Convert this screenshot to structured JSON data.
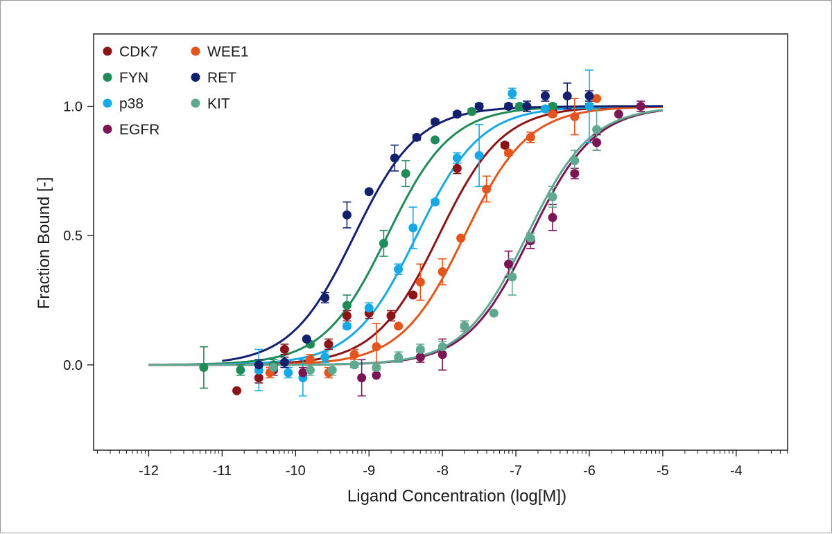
{
  "chart_data": {
    "type": "scatter",
    "xlabel": "Ligand Concentration (log[M])",
    "ylabel": "Fraction Bound [-]",
    "xlim": [
      -12.75,
      -3.3
    ],
    "ylim": [
      -0.33,
      1.28
    ],
    "xticks": [
      -12,
      -11,
      -10,
      -9,
      -8,
      -7,
      -6,
      -5,
      -4
    ],
    "xtick_labels": [
      "-12",
      "-11",
      "-10",
      "-9",
      "-8",
      "-7",
      "-6",
      "-5",
      "-4"
    ],
    "yticks": [
      0.0,
      0.5,
      1.0
    ],
    "ytick_labels": [
      "0.0",
      "0.5",
      "1.0"
    ],
    "grid": false,
    "legend_position": "top-left",
    "fit": "sigmoidal dose-response",
    "series": [
      {
        "name": "CDK7",
        "color": "#8b1418",
        "fit_ec50": -8.05,
        "fit_hill": 1.0,
        "fit_range": [
          -12,
          -5
        ],
        "points": [
          {
            "x": -10.8,
            "y": -0.1,
            "err": 0
          },
          {
            "x": -10.5,
            "y": -0.05,
            "err": 0.02
          },
          {
            "x": -10.15,
            "y": 0.06,
            "err": 0.02
          },
          {
            "x": -9.55,
            "y": 0.08,
            "err": 0.02
          },
          {
            "x": -9.3,
            "y": 0.19,
            "err": 0.02
          },
          {
            "x": -9.0,
            "y": 0.2,
            "err": 0.02
          },
          {
            "x": -8.7,
            "y": 0.19,
            "err": 0.02
          },
          {
            "x": -8.4,
            "y": 0.27,
            "err": 0
          },
          {
            "x": -7.8,
            "y": 0.76,
            "err": 0.02
          },
          {
            "x": -7.15,
            "y": 0.85,
            "err": 0.01
          },
          {
            "x": -6.5,
            "y": 0.98,
            "err": 0.01
          },
          {
            "x": -6.0,
            "y": 1.0,
            "err": 0.01
          }
        ]
      },
      {
        "name": "FYN",
        "color": "#1f8b58",
        "fit_ec50": -8.75,
        "fit_hill": 1.0,
        "fit_range": [
          -12,
          -5
        ],
        "points": [
          {
            "x": -11.25,
            "y": -0.01,
            "err": 0.08
          },
          {
            "x": -10.75,
            "y": -0.02,
            "err": 0.02
          },
          {
            "x": -10.3,
            "y": 0.0,
            "err": 0.02
          },
          {
            "x": -9.8,
            "y": 0.08,
            "err": 0.01
          },
          {
            "x": -9.3,
            "y": 0.23,
            "err": 0.04
          },
          {
            "x": -8.8,
            "y": 0.47,
            "err": 0.05
          },
          {
            "x": -8.5,
            "y": 0.74,
            "err": 0.05
          },
          {
            "x": -8.1,
            "y": 0.87,
            "err": 0
          },
          {
            "x": -7.6,
            "y": 0.98,
            "err": 0.01
          },
          {
            "x": -6.95,
            "y": 1.0,
            "err": 0.01
          },
          {
            "x": -6.5,
            "y": 1.0,
            "err": 0.01
          }
        ]
      },
      {
        "name": "p38",
        "color": "#16a9e6",
        "fit_ec50": -8.35,
        "fit_hill": 1.0,
        "fit_range": [
          -12,
          -5
        ],
        "points": [
          {
            "x": -10.5,
            "y": -0.02,
            "err": 0.08
          },
          {
            "x": -10.1,
            "y": -0.03,
            "err": 0.02
          },
          {
            "x": -9.9,
            "y": -0.05,
            "err": 0.07
          },
          {
            "x": -9.6,
            "y": 0.03,
            "err": 0.02
          },
          {
            "x": -9.3,
            "y": 0.15,
            "err": 0.01
          },
          {
            "x": -9.0,
            "y": 0.22,
            "err": 0.02
          },
          {
            "x": -8.6,
            "y": 0.37,
            "err": 0.02
          },
          {
            "x": -8.4,
            "y": 0.53,
            "err": 0.08
          },
          {
            "x": -8.1,
            "y": 0.63,
            "err": 0.01
          },
          {
            "x": -7.8,
            "y": 0.8,
            "err": 0.02
          },
          {
            "x": -7.5,
            "y": 0.81,
            "err": 0.12
          },
          {
            "x": -7.05,
            "y": 1.05,
            "err": 0.02
          },
          {
            "x": -6.6,
            "y": 0.99,
            "err": 0.01
          },
          {
            "x": -6.0,
            "y": 1.0,
            "err": 0.14
          }
        ]
      },
      {
        "name": "EGFR",
        "color": "#7b1553",
        "fit_ec50": -6.8,
        "fit_hill": 1.0,
        "fit_range": [
          -12,
          -5
        ],
        "points": [
          {
            "x": -10.3,
            "y": -0.02,
            "err": 0.02
          },
          {
            "x": -9.9,
            "y": -0.03,
            "err": 0.02
          },
          {
            "x": -9.1,
            "y": -0.05,
            "err": 0.07
          },
          {
            "x": -8.9,
            "y": -0.04,
            "err": 0
          },
          {
            "x": -8.3,
            "y": 0.03,
            "err": 0.02
          },
          {
            "x": -8.0,
            "y": 0.04,
            "err": 0.06
          },
          {
            "x": -7.7,
            "y": 0.15,
            "err": 0.02
          },
          {
            "x": -7.1,
            "y": 0.39,
            "err": 0.05
          },
          {
            "x": -6.8,
            "y": 0.48,
            "err": 0.03
          },
          {
            "x": -6.5,
            "y": 0.57,
            "err": 0.05
          },
          {
            "x": -6.2,
            "y": 0.74,
            "err": 0.02
          },
          {
            "x": -5.9,
            "y": 0.86,
            "err": 0.03
          },
          {
            "x": -5.6,
            "y": 0.97,
            "err": 0
          },
          {
            "x": -5.3,
            "y": 1.0,
            "err": 0.02
          }
        ]
      },
      {
        "name": "WEE1",
        "color": "#e5541a",
        "fit_ec50": -7.7,
        "fit_hill": 1.0,
        "fit_range": [
          -12,
          -5
        ],
        "points": [
          {
            "x": -10.35,
            "y": -0.03,
            "err": 0.02
          },
          {
            "x": -9.8,
            "y": 0.02,
            "err": 0.02
          },
          {
            "x": -9.55,
            "y": -0.03,
            "err": 0.02
          },
          {
            "x": -9.2,
            "y": 0.04,
            "err": 0.02
          },
          {
            "x": -8.9,
            "y": 0.07,
            "err": 0.09
          },
          {
            "x": -8.6,
            "y": 0.15,
            "err": 0
          },
          {
            "x": -8.3,
            "y": 0.32,
            "err": 0.07
          },
          {
            "x": -8.0,
            "y": 0.36,
            "err": 0.05
          },
          {
            "x": -7.75,
            "y": 0.49,
            "err": 0
          },
          {
            "x": -7.4,
            "y": 0.68,
            "err": 0.05
          },
          {
            "x": -7.1,
            "y": 0.82,
            "err": 0.01
          },
          {
            "x": -6.8,
            "y": 0.88,
            "err": 0.02
          },
          {
            "x": -6.5,
            "y": 0.97,
            "err": 0.01
          },
          {
            "x": -6.2,
            "y": 0.96,
            "err": 0.07
          },
          {
            "x": -5.9,
            "y": 1.03,
            "err": 0
          }
        ]
      },
      {
        "name": "RET",
        "color": "#141f6e",
        "fit_ec50": -9.2,
        "fit_hill": 1.0,
        "fit_range": [
          -11,
          -5
        ],
        "points": [
          {
            "x": -10.5,
            "y": 0.0,
            "err": 0.02
          },
          {
            "x": -10.15,
            "y": 0.01,
            "err": 0.02
          },
          {
            "x": -9.85,
            "y": 0.1,
            "err": 0
          },
          {
            "x": -9.6,
            "y": 0.26,
            "err": 0.02
          },
          {
            "x": -9.3,
            "y": 0.58,
            "err": 0.05
          },
          {
            "x": -9.0,
            "y": 0.67,
            "err": 0
          },
          {
            "x": -8.65,
            "y": 0.8,
            "err": 0.05
          },
          {
            "x": -8.35,
            "y": 0.88,
            "err": 0.01
          },
          {
            "x": -8.1,
            "y": 0.94,
            "err": 0.01
          },
          {
            "x": -7.8,
            "y": 0.97,
            "err": 0.01
          },
          {
            "x": -7.5,
            "y": 1.0,
            "err": 0.01
          },
          {
            "x": -7.1,
            "y": 1.0,
            "err": 0.01
          },
          {
            "x": -6.85,
            "y": 1.0,
            "err": 0.02
          },
          {
            "x": -6.6,
            "y": 1.04,
            "err": 0.02
          },
          {
            "x": -6.3,
            "y": 1.04,
            "err": 0.05
          },
          {
            "x": -6.0,
            "y": 1.04,
            "err": 0.02
          }
        ]
      },
      {
        "name": "KIT",
        "color": "#5fa892",
        "fit_ec50": -6.85,
        "fit_hill": 1.0,
        "fit_range": [
          -12,
          -5
        ],
        "points": [
          {
            "x": -10.3,
            "y": -0.01,
            "err": 0.02
          },
          {
            "x": -9.8,
            "y": -0.02,
            "err": 0.02
          },
          {
            "x": -9.5,
            "y": -0.02,
            "err": 0.02
          },
          {
            "x": -9.2,
            "y": 0.0,
            "err": 0.01
          },
          {
            "x": -8.9,
            "y": -0.01,
            "err": 0
          },
          {
            "x": -8.6,
            "y": 0.03,
            "err": 0.02
          },
          {
            "x": -8.3,
            "y": 0.06,
            "err": 0.02
          },
          {
            "x": -8.0,
            "y": 0.07,
            "err": 0.02
          },
          {
            "x": -7.7,
            "y": 0.15,
            "err": 0.02
          },
          {
            "x": -7.3,
            "y": 0.2,
            "err": 0
          },
          {
            "x": -7.05,
            "y": 0.34,
            "err": 0.07
          },
          {
            "x": -6.8,
            "y": 0.49,
            "err": 0.02
          },
          {
            "x": -6.5,
            "y": 0.65,
            "err": 0.04
          },
          {
            "x": -6.2,
            "y": 0.79,
            "err": 0.04
          },
          {
            "x": -5.9,
            "y": 0.91,
            "err": 0.08
          }
        ]
      }
    ],
    "legend_order": [
      "CDK7",
      "WEE1",
      "FYN",
      "RET",
      "p38",
      "KIT",
      "EGFR"
    ]
  }
}
